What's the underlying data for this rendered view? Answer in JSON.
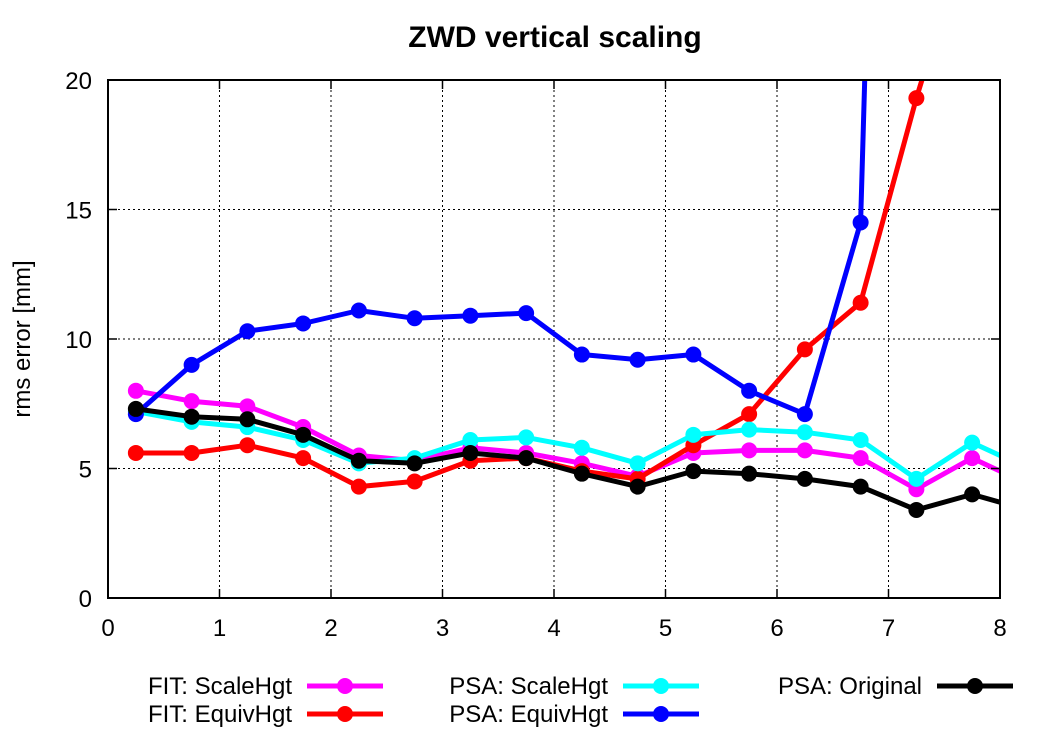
{
  "chart_data": {
    "type": "line",
    "title": "ZWD vertical scaling",
    "xlabel": "",
    "ylabel": "rms error [mm]",
    "xlim": [
      0,
      8
    ],
    "ylim": [
      0,
      20
    ],
    "xticks": [
      0,
      1,
      2,
      3,
      4,
      5,
      6,
      7,
      8
    ],
    "yticks": [
      0,
      5,
      10,
      15,
      20
    ],
    "grid": true,
    "legend_position": "bottom",
    "series": [
      {
        "name": "FIT: ScaleHgt",
        "color": "#ff00ff",
        "x": [
          0.25,
          0.75,
          1.25,
          1.75,
          2.25,
          2.75,
          3.25,
          3.75,
          4.25,
          4.75,
          5.25,
          5.75,
          6.25,
          6.75,
          7.25,
          7.75,
          8.0
        ],
        "y": [
          8.0,
          7.6,
          7.4,
          6.6,
          5.5,
          5.3,
          5.8,
          5.6,
          5.2,
          4.7,
          5.6,
          5.7,
          5.7,
          5.4,
          4.2,
          5.4,
          4.9
        ]
      },
      {
        "name": "FIT: EquivHgt",
        "color": "#ff0000",
        "x": [
          0.25,
          0.75,
          1.25,
          1.75,
          2.25,
          2.75,
          3.25,
          3.75,
          4.25,
          4.75,
          5.25,
          5.75,
          6.25,
          6.75,
          7.25,
          7.35
        ],
        "y": [
          5.6,
          5.6,
          5.9,
          5.4,
          4.3,
          4.5,
          5.3,
          5.4,
          4.9,
          4.6,
          5.9,
          7.1,
          9.6,
          11.4,
          19.3,
          20.7
        ]
      },
      {
        "name": "PSA: ScaleHgt",
        "color": "#00ffff",
        "x": [
          0.25,
          0.75,
          1.25,
          1.75,
          2.25,
          2.75,
          3.25,
          3.75,
          4.25,
          4.75,
          5.25,
          5.75,
          6.25,
          6.75,
          7.25,
          7.75,
          8.0
        ],
        "y": [
          7.2,
          6.8,
          6.6,
          6.1,
          5.2,
          5.4,
          6.1,
          6.2,
          5.8,
          5.2,
          6.3,
          6.5,
          6.4,
          6.1,
          4.6,
          6.0,
          5.5
        ]
      },
      {
        "name": "PSA: EquivHgt",
        "color": "#0000ff",
        "x": [
          0.25,
          0.75,
          1.25,
          1.75,
          2.25,
          2.75,
          3.25,
          3.75,
          4.25,
          4.75,
          5.25,
          5.75,
          6.25,
          6.75,
          6.8
        ],
        "y": [
          7.1,
          9.0,
          10.3,
          10.6,
          11.1,
          10.8,
          10.9,
          11.0,
          9.4,
          9.2,
          9.4,
          8.0,
          7.1,
          14.5,
          22.0
        ]
      },
      {
        "name": "PSA: Original",
        "color": "#000000",
        "x": [
          0.25,
          0.75,
          1.25,
          1.75,
          2.25,
          2.75,
          3.25,
          3.75,
          4.25,
          4.75,
          5.25,
          5.75,
          6.25,
          6.75,
          7.25,
          7.75,
          8.0
        ],
        "y": [
          7.3,
          7.0,
          6.9,
          6.3,
          5.3,
          5.2,
          5.6,
          5.4,
          4.8,
          4.3,
          4.9,
          4.8,
          4.6,
          4.3,
          3.4,
          4.0,
          3.7
        ]
      }
    ]
  }
}
